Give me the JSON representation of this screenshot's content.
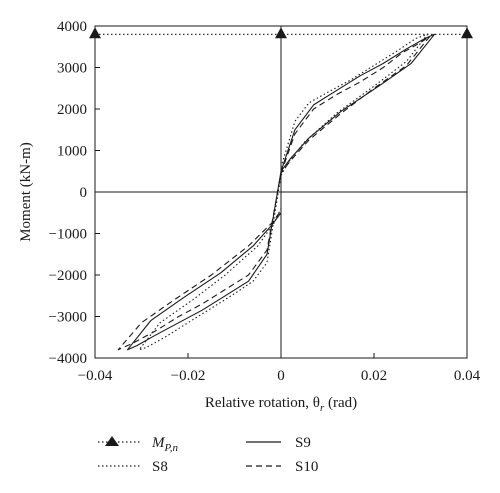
{
  "chart_data": {
    "type": "line",
    "xlabel": "Relative rotation, θ",
    "xlabel_sub": "r",
    "xlabel_unit": " (rad)",
    "ylabel": "Moment (kN-m)",
    "xlim": [
      -0.04,
      0.04
    ],
    "ylim": [
      -4000,
      4000
    ],
    "xticks": [
      -0.04,
      -0.02,
      0,
      0.02,
      0.04
    ],
    "xtick_labels": [
      "−0.04",
      "−0.02",
      "0",
      "0.02",
      "0.04"
    ],
    "yticks": [
      -4000,
      -3000,
      -2000,
      -1000,
      0,
      1000,
      2000,
      3000,
      4000
    ],
    "ytick_labels": [
      "−4000",
      "−3000",
      "−2000",
      "−1000",
      "0",
      "1000",
      "2000",
      "3000",
      "4000"
    ],
    "reference_lines": {
      "x": [
        0
      ],
      "y": [
        0
      ]
    },
    "grid": false,
    "legend_position": "bottom",
    "series": [
      {
        "name": "M",
        "name_sub": "P,n",
        "style": "dotted-triangle",
        "x": [
          -0.04,
          0,
          0.04
        ],
        "y": [
          3800,
          3800,
          3800
        ]
      },
      {
        "name": "S8",
        "style": "dotted",
        "x": [
          0,
          0.003,
          0.006,
          0.01,
          0.015,
          0.02,
          0.025,
          0.029,
          0.0315,
          0.027,
          0.02,
          0.012,
          0.005,
          0.0015,
          0,
          -0.003,
          -0.006,
          -0.01,
          -0.015,
          -0.02,
          -0.025,
          -0.029,
          -0.0305,
          -0.026,
          -0.019,
          -0.012,
          -0.005,
          -0.0015,
          0
        ],
        "y": [
          600,
          1700,
          2150,
          2400,
          2700,
          3050,
          3400,
          3700,
          3800,
          3150,
          2550,
          1900,
          1200,
          700,
          400,
          -1700,
          -2150,
          -2450,
          -2800,
          -3150,
          -3500,
          -3750,
          -3800,
          -3150,
          -2600,
          -2000,
          -1300,
          -750,
          -400
        ]
      },
      {
        "name": "S9",
        "style": "solid",
        "x": [
          0,
          0.003,
          0.007,
          0.012,
          0.017,
          0.022,
          0.027,
          0.031,
          0.033,
          0.028,
          0.021,
          0.013,
          0.006,
          0.002,
          0,
          -0.003,
          -0.007,
          -0.012,
          -0.017,
          -0.022,
          -0.027,
          -0.031,
          -0.033,
          -0.028,
          -0.021,
          -0.013,
          -0.006,
          -0.002,
          0
        ],
        "y": [
          500,
          1500,
          2100,
          2450,
          2800,
          3100,
          3450,
          3700,
          3800,
          3100,
          2550,
          1950,
          1300,
          800,
          500,
          -1500,
          -2150,
          -2500,
          -2850,
          -3150,
          -3450,
          -3700,
          -3800,
          -3100,
          -2550,
          -1950,
          -1300,
          -800,
          -500
        ]
      },
      {
        "name": "S10",
        "style": "dashed",
        "x": [
          0,
          0.003,
          0.007,
          0.012,
          0.017,
          0.022,
          0.026,
          0.03,
          0.032,
          0.027,
          0.02,
          0.013,
          0.006,
          0.002,
          0,
          -0.003,
          -0.007,
          -0.012,
          -0.017,
          -0.022,
          -0.027,
          -0.032,
          -0.035,
          -0.03,
          -0.023,
          -0.015,
          -0.007,
          -0.002,
          0
        ],
        "y": [
          450,
          1400,
          2000,
          2350,
          2650,
          3000,
          3350,
          3600,
          3750,
          3050,
          2500,
          1900,
          1250,
          750,
          450,
          -1400,
          -2000,
          -2350,
          -2700,
          -3000,
          -3350,
          -3650,
          -3800,
          -3150,
          -2600,
          -2000,
          -1300,
          -750,
          -450
        ]
      }
    ]
  }
}
